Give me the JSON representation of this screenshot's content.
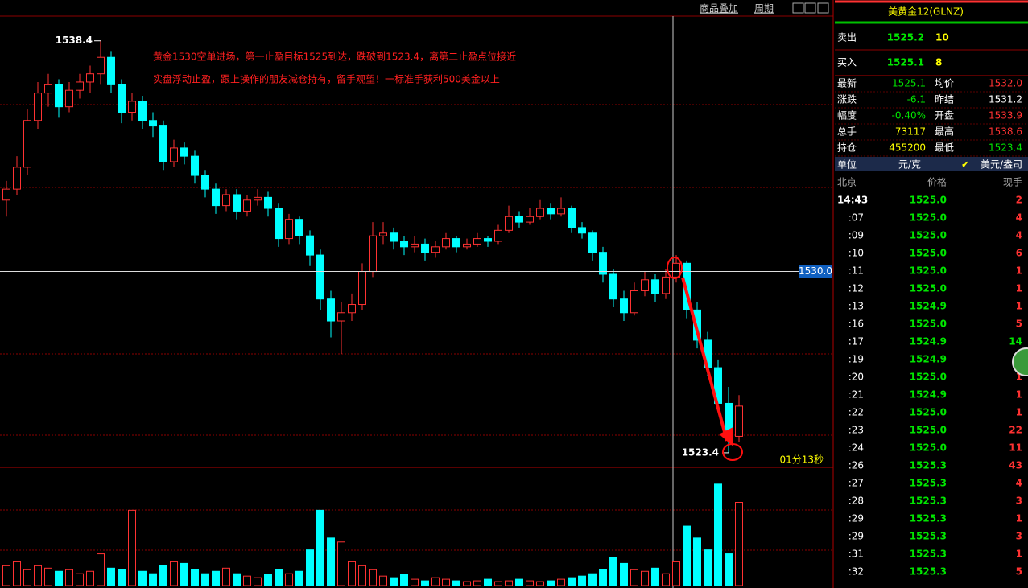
{
  "toolbar": {
    "overlay": "商品叠加",
    "period": "周期"
  },
  "chart_data": {
    "type": "candlestick",
    "annotation": [
      "黄金1530空单进场，第一止盈目标1525到达，跌破到1523.4，离第二止盈点位接近",
      "实盘浮动止盈，跟上操作的朋友减仓持有，留手观望！一标准手获利500美金以上"
    ],
    "ylim": [
      1522.9,
      1539.3
    ],
    "up_color": "#ff3232",
    "down_color": "#00ffff",
    "high_label": 1538.4,
    "low_label": 1523.4,
    "cursor_price": {
      "value": 1530,
      "label": "1530.0"
    },
    "timer": "01分13秒",
    "candles": [
      [
        1532.6,
        1533.3,
        1532.0,
        1533.0
      ],
      [
        1533.0,
        1534.2,
        1532.8,
        1533.8
      ],
      [
        1533.8,
        1535.9,
        1533.5,
        1535.5
      ],
      [
        1535.5,
        1536.9,
        1535.2,
        1536.5
      ],
      [
        1536.5,
        1537.2,
        1536.0,
        1536.8
      ],
      [
        1536.8,
        1537.0,
        1535.6,
        1536.0
      ],
      [
        1536.0,
        1536.9,
        1535.8,
        1536.6
      ],
      [
        1536.6,
        1537.2,
        1536.3,
        1536.9
      ],
      [
        1536.9,
        1537.5,
        1536.5,
        1537.2
      ],
      [
        1537.2,
        1538.4,
        1536.8,
        1537.8
      ],
      [
        1537.8,
        1538.0,
        1536.5,
        1536.8
      ],
      [
        1536.8,
        1537.0,
        1535.4,
        1535.8
      ],
      [
        1535.8,
        1536.5,
        1535.5,
        1536.2
      ],
      [
        1536.2,
        1536.4,
        1535.2,
        1535.5
      ],
      [
        1535.5,
        1535.8,
        1534.9,
        1535.3
      ],
      [
        1535.3,
        1535.5,
        1533.7,
        1534.0
      ],
      [
        1534.0,
        1534.8,
        1533.8,
        1534.5
      ],
      [
        1534.5,
        1534.7,
        1533.9,
        1534.2
      ],
      [
        1534.2,
        1534.4,
        1533.2,
        1533.5
      ],
      [
        1533.5,
        1533.7,
        1532.7,
        1533.0
      ],
      [
        1533.0,
        1533.2,
        1532.1,
        1532.4
      ],
      [
        1532.4,
        1533.0,
        1532.2,
        1532.8
      ],
      [
        1532.8,
        1533.0,
        1531.9,
        1532.2
      ],
      [
        1532.2,
        1532.8,
        1532.0,
        1532.6
      ],
      [
        1532.6,
        1533.0,
        1532.4,
        1532.7
      ],
      [
        1532.7,
        1532.9,
        1532.0,
        1532.3
      ],
      [
        1532.3,
        1532.5,
        1530.9,
        1531.2
      ],
      [
        1531.2,
        1532.1,
        1531.0,
        1531.9
      ],
      [
        1531.9,
        1532.0,
        1531.0,
        1531.3
      ],
      [
        1531.3,
        1531.5,
        1530.2,
        1530.6
      ],
      [
        1530.6,
        1530.8,
        1528.6,
        1529.0
      ],
      [
        1529.0,
        1529.3,
        1527.6,
        1528.2
      ],
      [
        1528.2,
        1528.9,
        1527.0,
        1528.5
      ],
      [
        1528.5,
        1529.2,
        1528.2,
        1528.8
      ],
      [
        1528.8,
        1530.3,
        1528.6,
        1530.0
      ],
      [
        1530.0,
        1531.8,
        1529.8,
        1531.3
      ],
      [
        1531.3,
        1531.8,
        1531.0,
        1531.4
      ],
      [
        1531.4,
        1531.6,
        1530.8,
        1531.1
      ],
      [
        1531.1,
        1531.3,
        1530.6,
        1530.9
      ],
      [
        1530.9,
        1531.3,
        1530.7,
        1531.0
      ],
      [
        1531.0,
        1531.2,
        1530.4,
        1530.7
      ],
      [
        1530.7,
        1531.1,
        1530.5,
        1530.9
      ],
      [
        1530.9,
        1531.4,
        1530.8,
        1531.2
      ],
      [
        1531.2,
        1531.3,
        1530.7,
        1530.9
      ],
      [
        1530.9,
        1531.2,
        1530.8,
        1531.0
      ],
      [
        1531.0,
        1531.4,
        1530.9,
        1531.2
      ],
      [
        1531.2,
        1531.3,
        1530.9,
        1531.1
      ],
      [
        1531.1,
        1531.7,
        1531.0,
        1531.5
      ],
      [
        1531.5,
        1532.4,
        1531.4,
        1532.0
      ],
      [
        1532.0,
        1532.2,
        1531.6,
        1531.8
      ],
      [
        1531.8,
        1532.3,
        1531.7,
        1532.0
      ],
      [
        1532.0,
        1532.6,
        1531.9,
        1532.3
      ],
      [
        1532.3,
        1532.5,
        1531.9,
        1532.1
      ],
      [
        1532.1,
        1532.7,
        1532.0,
        1532.3
      ],
      [
        1532.3,
        1532.4,
        1531.4,
        1531.6
      ],
      [
        1531.6,
        1531.8,
        1531.2,
        1531.4
      ],
      [
        1531.4,
        1531.5,
        1530.4,
        1530.7
      ],
      [
        1530.7,
        1530.9,
        1529.6,
        1529.9
      ],
      [
        1529.9,
        1530.1,
        1528.7,
        1529.0
      ],
      [
        1529.0,
        1529.3,
        1528.2,
        1528.5
      ],
      [
        1528.5,
        1529.6,
        1528.4,
        1529.3
      ],
      [
        1529.3,
        1530.0,
        1529.1,
        1529.7
      ],
      [
        1529.7,
        1529.9,
        1528.9,
        1529.2
      ],
      [
        1529.2,
        1530.1,
        1529.0,
        1529.8
      ],
      [
        1529.8,
        1530.6,
        1529.6,
        1530.3
      ],
      [
        1530.3,
        1530.4,
        1528.3,
        1528.6
      ],
      [
        1528.6,
        1528.9,
        1527.2,
        1527.5
      ],
      [
        1527.5,
        1527.8,
        1526.2,
        1526.5
      ],
      [
        1526.5,
        1526.8,
        1524.9,
        1525.2
      ],
      [
        1525.2,
        1525.8,
        1523.4,
        1524.0
      ],
      [
        1524.0,
        1525.5,
        1523.8,
        1525.1
      ]
    ],
    "volume": [
      25,
      30,
      20,
      25,
      22,
      18,
      20,
      15,
      18,
      40,
      22,
      20,
      95,
      18,
      15,
      25,
      30,
      28,
      20,
      15,
      18,
      22,
      15,
      12,
      10,
      14,
      20,
      15,
      18,
      45,
      95,
      60,
      55,
      30,
      25,
      20,
      12,
      10,
      14,
      8,
      6,
      10,
      8,
      6,
      5,
      6,
      8,
      5,
      6,
      8,
      6,
      5,
      6,
      8,
      10,
      12,
      15,
      20,
      35,
      28,
      20,
      18,
      22,
      15,
      30,
      75,
      60,
      45,
      128,
      40,
      105
    ],
    "volume_ylim": [
      0,
      140
    ]
  },
  "quote": {
    "title": "美黄金12(GLNZ)",
    "sell": {
      "label": "卖出",
      "price": "1525.2",
      "qty": "10"
    },
    "buy": {
      "label": "买入",
      "price": "1525.1",
      "qty": "8"
    },
    "stats": [
      {
        "label": "最新",
        "value": "1525.1",
        "color": "#00e600"
      },
      {
        "label": "均价",
        "value": "1532.0",
        "color": "#ff3232"
      },
      {
        "label": "涨跌",
        "value": "-6.1",
        "color": "#00e600"
      },
      {
        "label": "昨结",
        "value": "1531.2",
        "color": "#ffffff"
      },
      {
        "label": "幅度",
        "value": "-0.40%",
        "color": "#00e600"
      },
      {
        "label": "开盘",
        "value": "1533.9",
        "color": "#ff3232"
      },
      {
        "label": "总手",
        "value": "73117",
        "color": "#ffff00"
      },
      {
        "label": "最高",
        "value": "1538.6",
        "color": "#ff3232"
      },
      {
        "label": "持仓",
        "value": "455200",
        "color": "#ffff00"
      },
      {
        "label": "最低",
        "value": "1523.4",
        "color": "#00e600"
      }
    ],
    "unit": {
      "label": "单位",
      "cny": "元/克",
      "usd": "美元/盎司"
    },
    "header": [
      "北京",
      "价格",
      "现手"
    ],
    "ticks": [
      {
        "time": "14:43",
        "price": "1525.0",
        "qty": "2",
        "color": "#ff3232"
      },
      {
        "time": ":07",
        "price": "1525.0",
        "qty": "4",
        "color": "#ff3232"
      },
      {
        "time": ":09",
        "price": "1525.0",
        "qty": "4",
        "color": "#ff3232"
      },
      {
        "time": ":10",
        "price": "1525.0",
        "qty": "6",
        "color": "#ff3232"
      },
      {
        "time": ":11",
        "price": "1525.0",
        "qty": "1",
        "color": "#ff3232"
      },
      {
        "time": ":12",
        "price": "1525.0",
        "qty": "1",
        "color": "#ff3232"
      },
      {
        "time": ":13",
        "price": "1524.9",
        "qty": "1",
        "color": "#ff3232"
      },
      {
        "time": ":16",
        "price": "1525.0",
        "qty": "5",
        "color": "#ff3232"
      },
      {
        "time": ":17",
        "price": "1524.9",
        "qty": "14",
        "color": "#00e600"
      },
      {
        "time": ":19",
        "price": "1524.9"
      },
      {
        "time": ":20",
        "price": "1525.0",
        "qty": "1",
        "color": "#ff3232"
      },
      {
        "time": ":21",
        "price": "1524.9",
        "qty": "1",
        "color": "#ff3232"
      },
      {
        "time": ":22",
        "price": "1525.0",
        "qty": "1",
        "color": "#ff3232"
      },
      {
        "time": ":23",
        "price": "1525.0",
        "qty": "22",
        "color": "#ff3232"
      },
      {
        "time": ":24",
        "price": "1525.0",
        "qty": "11",
        "color": "#ff3232"
      },
      {
        "time": ":26",
        "price": "1525.3",
        "qty": "43",
        "color": "#ff3232"
      },
      {
        "time": ":27",
        "price": "1525.3",
        "qty": "4",
        "color": "#ff3232"
      },
      {
        "time": ":28",
        "price": "1525.3",
        "qty": "3",
        "color": "#ff3232"
      },
      {
        "time": ":29",
        "price": "1525.3",
        "qty": "1",
        "color": "#ff3232"
      },
      {
        "time": ":29",
        "price": "1525.3",
        "qty": "3",
        "color": "#ff3232"
      },
      {
        "time": ":31",
        "price": "1525.3",
        "qty": "1",
        "color": "#ff3232"
      },
      {
        "time": ":32",
        "price": "1525.3",
        "qty": "5",
        "color": "#ff3232"
      }
    ]
  }
}
